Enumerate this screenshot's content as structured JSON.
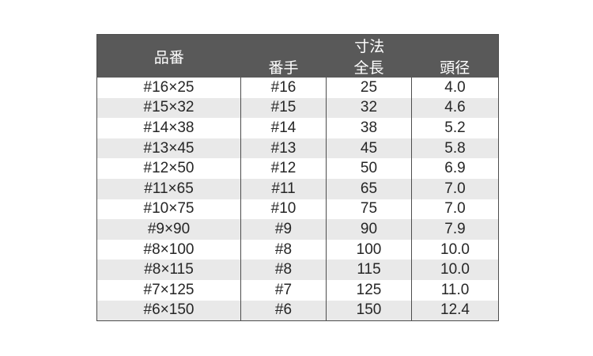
{
  "table": {
    "header": {
      "col_product": "品番",
      "col_dimensions": "寸法",
      "sub_cols": [
        "番手",
        "全長",
        "頭径"
      ]
    },
    "rows": [
      {
        "product": "#16×25",
        "count": "#16",
        "length": "25",
        "head_dia": "4.0"
      },
      {
        "product": "#15×32",
        "count": "#15",
        "length": "32",
        "head_dia": "4.6"
      },
      {
        "product": "#14×38",
        "count": "#14",
        "length": "38",
        "head_dia": "5.2"
      },
      {
        "product": "#13×45",
        "count": "#13",
        "length": "45",
        "head_dia": "5.8"
      },
      {
        "product": "#12×50",
        "count": "#12",
        "length": "50",
        "head_dia": "6.9"
      },
      {
        "product": "#11×65",
        "count": "#11",
        "length": "65",
        "head_dia": "7.0"
      },
      {
        "product": "#10×75",
        "count": "#10",
        "length": "75",
        "head_dia": "7.0"
      },
      {
        "product": "#9×90",
        "count": "#9",
        "length": "90",
        "head_dia": "7.9"
      },
      {
        "product": "#8×100",
        "count": "#8",
        "length": "100",
        "head_dia": "10.0"
      },
      {
        "product": "#8×115",
        "count": "#8",
        "length": "115",
        "head_dia": "10.0"
      },
      {
        "product": "#7×125",
        "count": "#7",
        "length": "125",
        "head_dia": "11.0"
      },
      {
        "product": "#6×150",
        "count": "#6",
        "length": "150",
        "head_dia": "12.4"
      }
    ],
    "colors": {
      "header_bg": "#595959",
      "header_text": "#ffffff",
      "alt_row_bg": "#e9e9e9",
      "border": "#4d4d4d",
      "body_text": "#262626"
    }
  }
}
